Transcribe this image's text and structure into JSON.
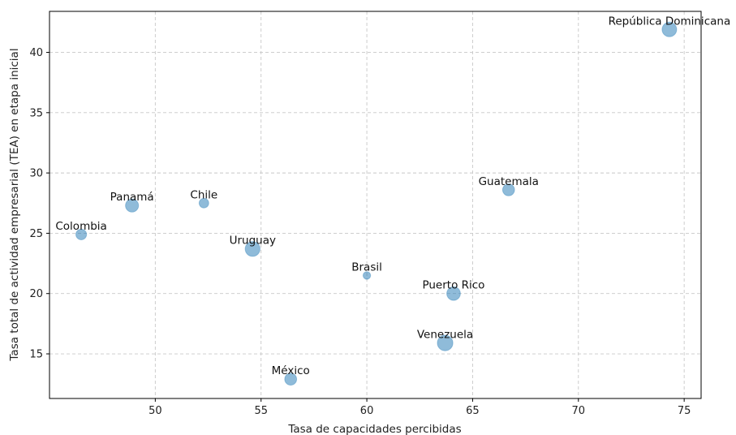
{
  "chart_data": {
    "type": "scatter",
    "xlabel": "Tasa de capacidades percibidas",
    "ylabel": "Tasa total de actividad empresarial (TEA) en etapa inicial",
    "xlim": [
      45.0,
      75.8
    ],
    "ylim": [
      11.3,
      43.4
    ],
    "xticks": [
      50,
      55,
      60,
      65,
      70,
      75
    ],
    "yticks": [
      15,
      20,
      25,
      30,
      35,
      40
    ],
    "grid": true,
    "marker_color": "#1f77b4",
    "marker_alpha": 0.5,
    "points": [
      {
        "label": "República Dominicana",
        "x": 74.3,
        "y": 41.9,
        "size": 3
      },
      {
        "label": "Guatemala",
        "x": 66.7,
        "y": 28.6,
        "size": 2
      },
      {
        "label": "Panamá",
        "x": 48.9,
        "y": 27.3,
        "size": 2.4
      },
      {
        "label": "Chile",
        "x": 52.3,
        "y": 27.5,
        "size": 1.3
      },
      {
        "label": "Colombia",
        "x": 46.5,
        "y": 24.9,
        "size": 1.6
      },
      {
        "label": "Uruguay",
        "x": 54.6,
        "y": 23.7,
        "size": 3.1
      },
      {
        "label": "Brasil",
        "x": 60.0,
        "y": 21.5,
        "size": 0.8
      },
      {
        "label": "Puerto Rico",
        "x": 64.1,
        "y": 20.0,
        "size": 2.6
      },
      {
        "label": "Venezuela",
        "x": 63.7,
        "y": 15.9,
        "size": 3.4
      },
      {
        "label": "México",
        "x": 56.4,
        "y": 12.9,
        "size": 2.0
      }
    ]
  }
}
